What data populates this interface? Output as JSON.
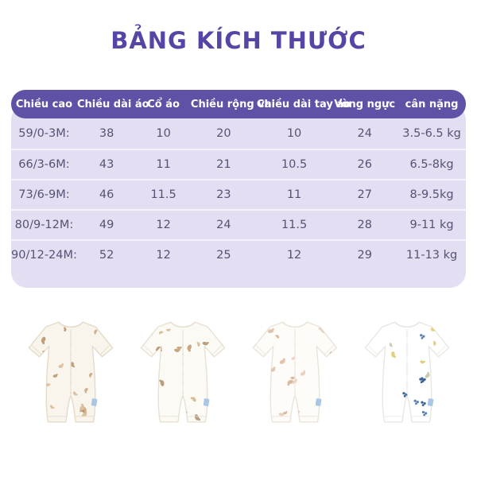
{
  "title": {
    "text": "BẢNG KÍCH THƯỚC"
  },
  "theme": {
    "page_bg": "#ffffff",
    "title_color": "#5645a4",
    "header_bg": "#5f51a5",
    "header_text": "#ffffff",
    "body_bg": "#e3def2",
    "row_text": "#575273",
    "separator": "#f4f2fb"
  },
  "size_table": {
    "columns": [
      "Chiều cao",
      "Chiều dài áo",
      "Cổ áo",
      "Chiều rộng vai",
      "Chiều dài tay áo",
      "Vòng ngực",
      "cân nặng"
    ],
    "rows": [
      {
        "size": "59/0-3M:",
        "values": [
          "38",
          "10",
          "20",
          "10",
          "24",
          "3.5-6.5 kg"
        ]
      },
      {
        "size": "66/3-6M:",
        "values": [
          "43",
          "11",
          "21",
          "10.5",
          "26",
          "6.5-8kg"
        ]
      },
      {
        "size": "73/6-9M:",
        "values": [
          "46",
          "11.5",
          "23",
          "11",
          "27",
          "8-9.5kg"
        ]
      },
      {
        "size": "80/9-12M:",
        "values": [
          "49",
          "12",
          "24",
          "11.5",
          "28",
          "9-11 kg"
        ]
      },
      {
        "size": "90/12-24M:",
        "values": [
          "52",
          "12",
          "25",
          "12",
          "29",
          "11-13 kg"
        ]
      }
    ]
  },
  "products": [
    {
      "name": "romper-cream-bear-print",
      "base_color": "#f9f5ec",
      "outline_color": "#e4dbc9",
      "pattern_style": "blob",
      "pattern_colors": [
        "#c79e6f",
        "#b08a5e",
        "#d4b48c"
      ],
      "tag_color": "#a9c6e4"
    },
    {
      "name": "romper-white-bear-print",
      "base_color": "#fcfaf5",
      "outline_color": "#e8e1d3",
      "pattern_style": "blob",
      "pattern_colors": [
        "#bb9266",
        "#a8875f",
        "#cfae83"
      ],
      "tag_color": "#a9c6e4"
    },
    {
      "name": "romper-white-floral-print",
      "base_color": "#fdfcf9",
      "outline_color": "#ebe4da",
      "pattern_style": "blob",
      "pattern_colors": [
        "#dbb69c",
        "#cfa98c",
        "#e3c6ae"
      ],
      "tag_color": "#a9c6e4"
    },
    {
      "name": "romper-white-berry-print",
      "base_color": "#ffffff",
      "outline_color": "#e8e8e2",
      "pattern_style": "berries",
      "pattern_colors": [
        "#3f6597",
        "#ddc35e",
        "#5b82b4",
        "#b9c29b"
      ],
      "tag_color": "#a9c6e4"
    }
  ]
}
